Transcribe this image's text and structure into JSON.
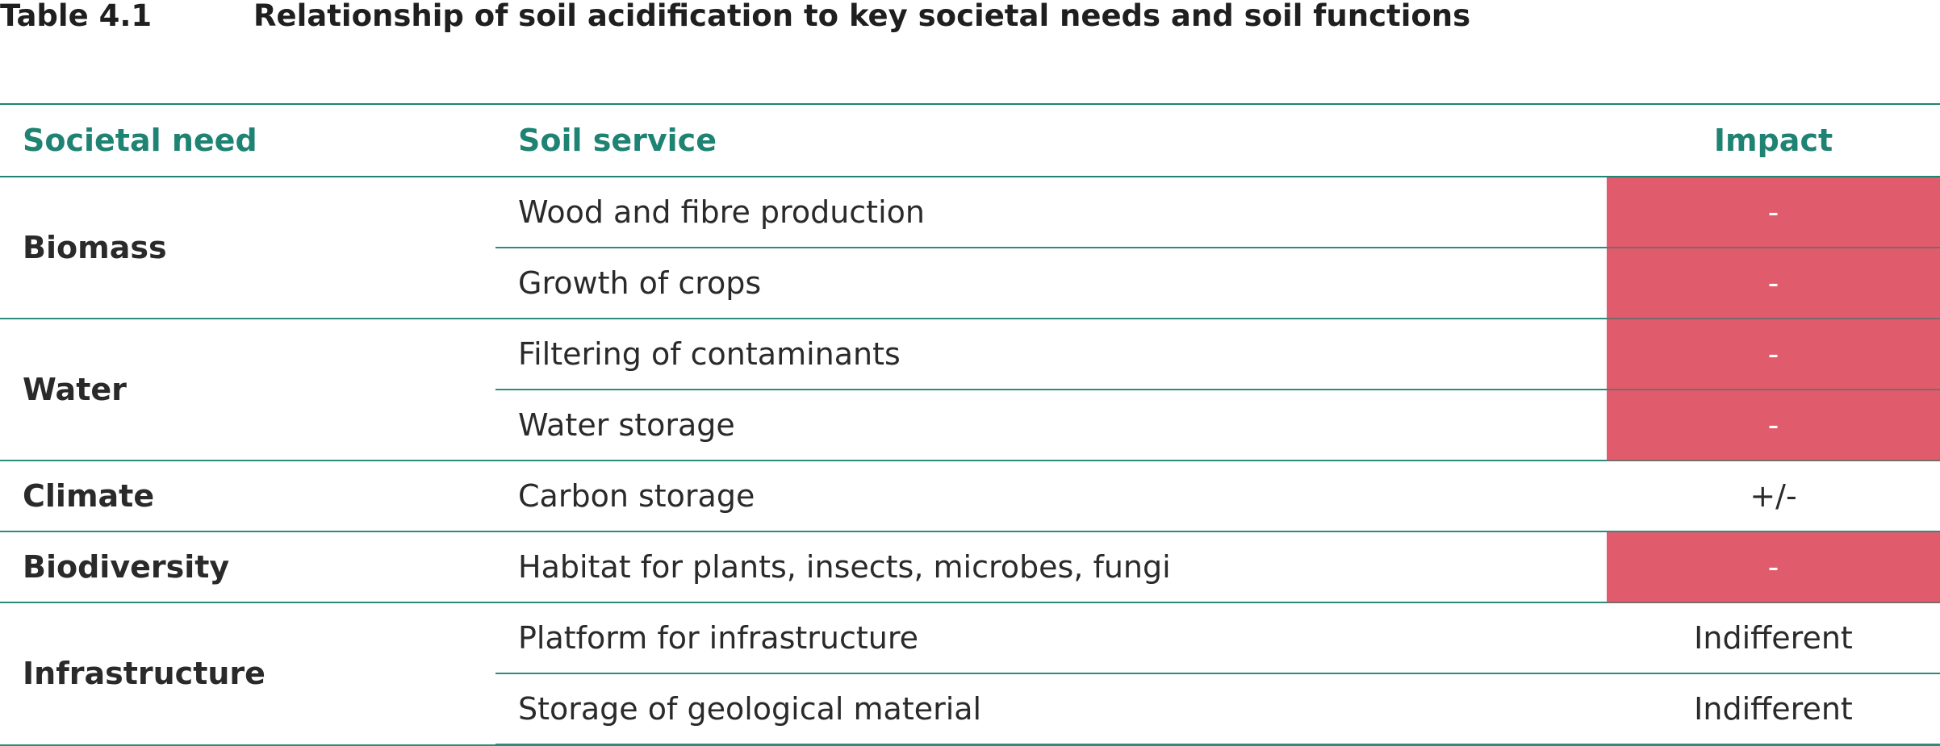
{
  "table": {
    "label": "Table 4.1",
    "title": "Relationship of soil acidification to key societal needs and soil functions",
    "columns": {
      "need": "Societal need",
      "service": "Soil service",
      "impact": "Impact"
    },
    "colors": {
      "header_text": "#1f8373",
      "rule": "#2e8a7b",
      "negative_fill": "#e05c6d"
    },
    "groups": [
      {
        "need": "Biomass",
        "rows": [
          {
            "service": "Wood and fibre production",
            "impact": "-",
            "negative": true
          },
          {
            "service": "Growth of crops",
            "impact": "-",
            "negative": true
          }
        ]
      },
      {
        "need": "Water",
        "rows": [
          {
            "service": "Filtering of contaminants",
            "impact": "-",
            "negative": true
          },
          {
            "service": "Water storage",
            "impact": "-",
            "negative": true
          }
        ]
      },
      {
        "need": "Climate",
        "rows": [
          {
            "service": "Carbon storage",
            "impact": "+/-",
            "negative": false
          }
        ]
      },
      {
        "need": "Biodiversity",
        "rows": [
          {
            "service": "Habitat for plants, insects, microbes, fungi",
            "impact": "-",
            "negative": true
          }
        ]
      },
      {
        "need": "Infrastructure",
        "rows": [
          {
            "service": "Platform for infrastructure",
            "impact": "Indifferent",
            "negative": false
          },
          {
            "service": "Storage of geological material",
            "impact": "Indifferent",
            "negative": false
          }
        ]
      }
    ]
  }
}
